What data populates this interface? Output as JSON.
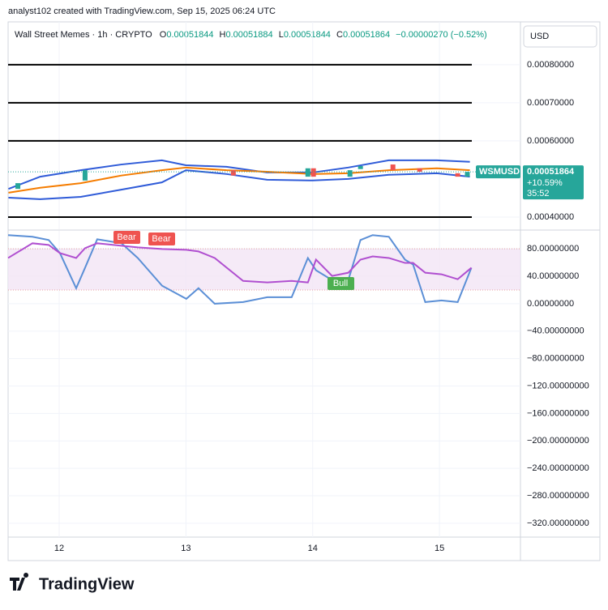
{
  "header": {
    "attribution": "analyst102 created with TradingView.com, Sep 15, 2025 06:24 UTC",
    "symbol_line": "Wall Street Memes · 1h · CRYPTO",
    "ohlc": [
      {
        "label": "O",
        "value": "0.00051844"
      },
      {
        "label": "H",
        "value": "0.00051884"
      },
      {
        "label": "L",
        "value": "0.00051844"
      },
      {
        "label": "C",
        "value": "0.00051864"
      }
    ],
    "change": "−0.00000270 (−0.52%)",
    "currency": "USD",
    "brand": "TradingView"
  },
  "chart_data": [
    {
      "type": "candlestick",
      "xlim": [
        11.597,
        15.639
      ],
      "xticks": [
        12,
        13,
        14,
        15
      ],
      "ylim": [
        0.000368,
        0.000906
      ],
      "yticks": [
        {
          "value": 0.0004,
          "label": "0.00040000"
        },
        {
          "value": 0.0006,
          "label": "0.00060000"
        },
        {
          "value": 0.0007,
          "label": "0.00070000"
        },
        {
          "value": 0.0008,
          "label": "0.00080000"
        }
      ],
      "grid": true,
      "levels": [
        0.0008,
        0.0007,
        0.0006,
        0.0004
      ],
      "level_color": "#000000",
      "candles": {
        "up_color": "#26a69a",
        "down_color": "#ef5350",
        "x": [
          11.674,
          12.204,
          13.374,
          13.962,
          14.006,
          14.294,
          14.377,
          14.633,
          14.844,
          15.144,
          15.22
        ],
        "open": [
          0.000474,
          0.000496,
          0.000523,
          0.000506,
          0.000528,
          0.000506,
          0.000526,
          0.000538,
          0.000528,
          0.000515,
          0.000506
        ],
        "close": [
          0.000489,
          0.000523,
          0.000509,
          0.000528,
          0.000506,
          0.000523,
          0.000534,
          0.000523,
          0.000519,
          0.000506,
          0.00051864
        ]
      },
      "x": [
        11.6,
        11.85,
        12.17,
        12.49,
        12.81,
        13.0,
        13.32,
        13.64,
        14.0,
        14.28,
        14.6,
        14.98,
        15.24
      ],
      "series": [
        {
          "color": "#2f5bd8",
          "values": [
            0.000474,
            0.000506,
            0.000523,
            0.000538,
            0.000549,
            0.000536,
            0.000532,
            0.000517,
            0.000517,
            0.00053,
            0.000549,
            0.000549,
            0.000545
          ]
        },
        {
          "color": "#f57c00",
          "values": [
            0.000464,
            0.000477,
            0.000489,
            0.000509,
            0.000523,
            0.00053,
            0.000523,
            0.000519,
            0.000513,
            0.000515,
            0.000523,
            0.000528,
            0.000523
          ]
        },
        {
          "color": "#2f5bd8",
          "values": [
            0.000451,
            0.000447,
            0.000453,
            0.000472,
            0.000491,
            0.000523,
            0.000513,
            0.000498,
            0.000496,
            0.0005,
            0.000511,
            0.000515,
            0.000506
          ]
        }
      ],
      "price_label": {
        "symbol": "WSMUSD",
        "price": 0.00051864,
        "change": "+10.59%",
        "countdown": "35:52",
        "color": "#26a69a"
      }
    },
    {
      "type": "line",
      "xlim": [
        11.597,
        15.639
      ],
      "xticks": [
        12,
        13,
        14,
        15
      ],
      "ylim": [
        -340.2,
        106.2
      ],
      "yticks": [
        {
          "value": 80,
          "label": "80.00000000"
        },
        {
          "value": 40,
          "label": "40.00000000"
        },
        {
          "value": 0,
          "label": "0.00000000"
        },
        {
          "value": -40,
          "label": "−40.00000000"
        },
        {
          "value": -80,
          "label": "−80.00000000"
        },
        {
          "value": -120,
          "label": "−120.00000000"
        },
        {
          "value": -160,
          "label": "−160.00000000"
        },
        {
          "value": -200,
          "label": "−200.00000000"
        },
        {
          "value": -240,
          "label": "−240.00000000"
        },
        {
          "value": -280,
          "label": "−280.00000000"
        },
        {
          "value": -320,
          "label": "−320.00000000"
        }
      ],
      "grid": true,
      "band": [
        20,
        80
      ],
      "band_color": "#f3e5f5",
      "x": [
        11.597,
        11.789,
        11.917,
        12.006,
        12.134,
        12.204,
        12.3,
        12.492,
        12.62,
        12.812,
        13.003,
        13.099,
        13.227,
        13.451,
        13.642,
        13.834,
        13.962,
        14.026,
        14.153,
        14.281,
        14.377,
        14.473,
        14.601,
        14.728,
        14.792,
        14.888,
        15.016,
        15.144,
        15.252
      ],
      "series": [
        {
          "color": "#5b8fd6",
          "values": [
            100,
            97.6,
            92.9,
            73.8,
            22.6,
            52.4,
            94,
            88.1,
            66.7,
            26.2,
            7.1,
            22.6,
            0,
            2.4,
            9.5,
            9.5,
            66.7,
            48.8,
            34.5,
            34.5,
            92.9,
            100,
            97.6,
            64.3,
            57.1,
            2.4,
            4.8,
            2.4,
            52.4
          ]
        },
        {
          "color": "#b04fd0",
          "values": [
            66.7,
            88.1,
            85.7,
            73.8,
            66.7,
            81,
            88.1,
            84.5,
            82.1,
            79.8,
            78.6,
            76.2,
            66.7,
            33.3,
            31,
            33.3,
            31,
            64.3,
            40.5,
            45.2,
            64.3,
            69,
            66.7,
            59.5,
            59.5,
            45.2,
            42.9,
            35.7,
            52.4
          ]
        }
      ],
      "annotations": [
        {
          "text": "Bear",
          "color": "#ef5350"
        },
        {
          "text": "Bear",
          "color": "#ef5350"
        },
        {
          "text": "Bull",
          "color": "#4caf50"
        }
      ]
    }
  ]
}
